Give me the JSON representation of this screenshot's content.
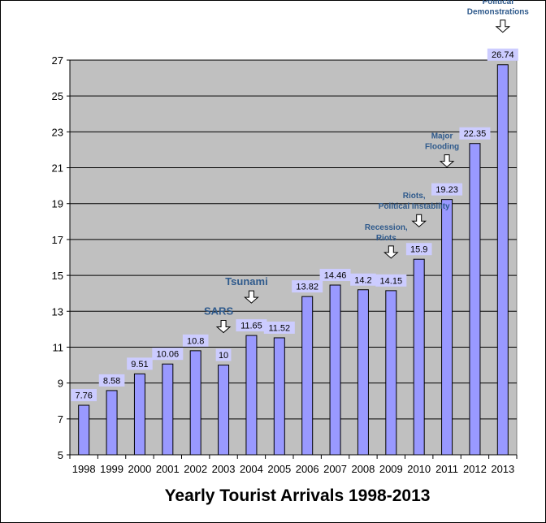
{
  "chart_data": {
    "type": "bar",
    "title": "Yearly Tourist Arrivals 1998-2013",
    "xlabel": "",
    "ylabel": "",
    "categories": [
      "1998",
      "1999",
      "2000",
      "2001",
      "2002",
      "2003",
      "2004",
      "2005",
      "2006",
      "2007",
      "2008",
      "2009",
      "2010",
      "2011",
      "2012",
      "2013"
    ],
    "values": [
      7.76,
      8.58,
      9.51,
      10.06,
      10.8,
      10,
      11.65,
      11.52,
      13.82,
      14.46,
      14.2,
      14.15,
      15.9,
      19.23,
      22.35,
      26.74
    ],
    "data_labels": [
      "7.76",
      "8.58",
      "9.51",
      "10.06",
      "10.8",
      "10",
      "11.65",
      "11.52",
      "13.82",
      "14.46",
      "14.2",
      "14.15",
      "15.9",
      "19.23",
      "22.35",
      "26.74"
    ],
    "ylim": [
      5,
      27
    ],
    "yticks": [
      5,
      7,
      9,
      11,
      13,
      15,
      17,
      19,
      21,
      23,
      25,
      27
    ],
    "ytick_labels": [
      "5",
      "7",
      "9",
      "11",
      "13",
      "15",
      "17",
      "19",
      "21",
      "23",
      "25",
      "27"
    ],
    "grid": true,
    "legend": "none",
    "colors": {
      "bar_fill": "#9999ff",
      "plot_background": "#c0c0c0",
      "annotation_text": "#2f5a8c"
    },
    "annotations": [
      {
        "category": "2003",
        "lines": [
          "SARS"
        ]
      },
      {
        "category": "2004",
        "lines": [
          "Tsunami"
        ]
      },
      {
        "category": "2009",
        "lines": [
          "Recession,",
          "Riots"
        ]
      },
      {
        "category": "2010",
        "lines": [
          "Riots,",
          "Political Instability"
        ]
      },
      {
        "category": "2011",
        "lines": [
          "Major",
          "Flooding"
        ]
      },
      {
        "category": "2013",
        "lines": [
          "Political",
          "Demonstrations"
        ]
      }
    ]
  }
}
